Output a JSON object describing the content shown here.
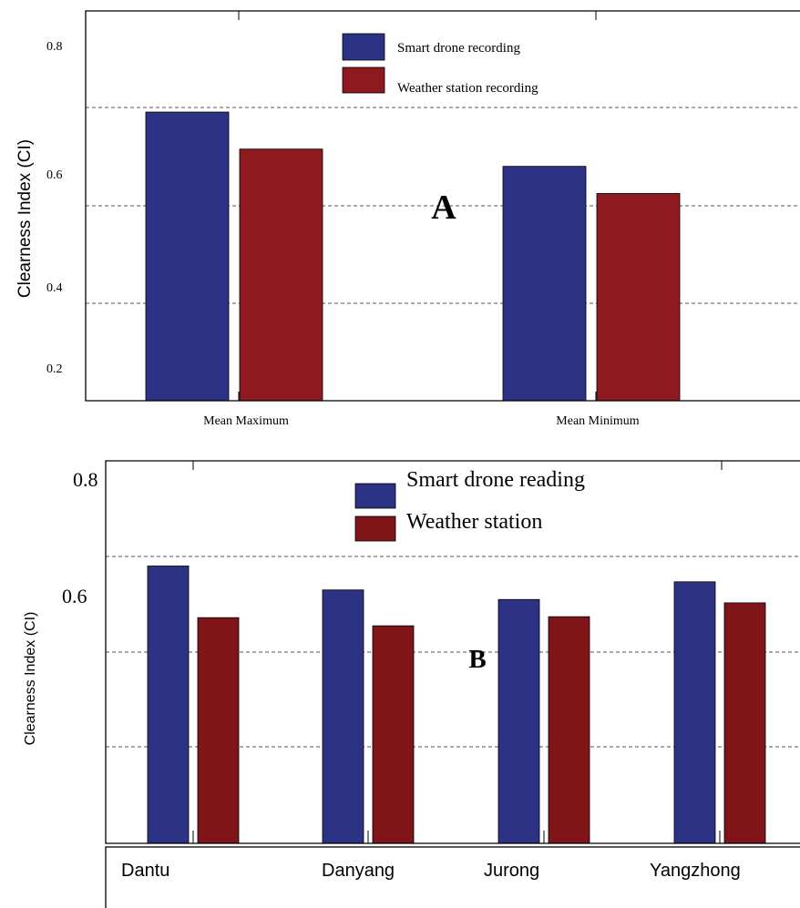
{
  "chart_data": [
    {
      "type": "bar",
      "panel_label": "A",
      "ylabel": "Clearness Index  (CI)",
      "categories": [
        "Mean Maximum",
        "Mean Minimum"
      ],
      "yticks": [
        "0.2",
        "0.4",
        "0.6",
        "0.8"
      ],
      "ylim": [
        0.13,
        0.92
      ],
      "grid": "dashed horizontal",
      "legend_position": "top-center",
      "series": [
        {
          "name": "Smart drone recording",
          "color": "#2d3384",
          "values": [
            0.715,
            0.605
          ]
        },
        {
          "name": "Weather station recording",
          "color": "#8e1a20",
          "values": [
            0.64,
            0.55
          ]
        }
      ]
    },
    {
      "type": "bar",
      "panel_label": "B",
      "ylabel": "Clearness Index  (CI)",
      "categories": [
        "Dantu",
        "Danyang",
        "Jurong",
        "Yangzhong"
      ],
      "yticks": [
        "0.8",
        "0.6"
      ],
      "ylim": [
        0.06,
        0.86
      ],
      "grid": "dashed horizontal",
      "legend_position": "top-center",
      "series": [
        {
          "name": "Smart drone reading",
          "color": "#2d3384",
          "values": [
            0.64,
            0.59,
            0.57,
            0.607
          ]
        },
        {
          "name": "Weather station",
          "color": "#7f1518",
          "values": [
            0.532,
            0.515,
            0.534,
            0.563
          ]
        }
      ]
    }
  ]
}
